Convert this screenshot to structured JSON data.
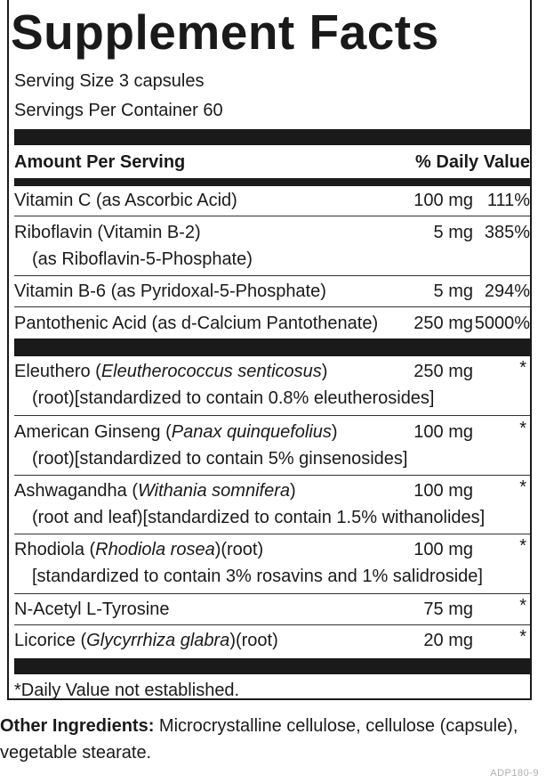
{
  "title": "Supplement Facts",
  "serving_size": "Serving Size 3 capsules",
  "servings_per_container": "Servings Per Container 60",
  "header": {
    "amount": "Amount Per Serving",
    "daily_value": "% Daily Value"
  },
  "vitamins": [
    {
      "name": "Vitamin C (as Ascorbic Acid)",
      "amount": "100 mg",
      "dv": "111%"
    },
    {
      "name": "Riboflavin (Vitamin B-2)",
      "name_cont": "(as Riboflavin-5-Phosphate)",
      "amount": "5 mg",
      "dv": "385%"
    },
    {
      "name": "Vitamin B-6 (as Pyridoxal-5-Phosphate)",
      "amount": "5 mg",
      "dv": "294%"
    },
    {
      "name": "Pantothenic Acid (as d-Calcium Pantothenate)",
      "amount": "250 mg",
      "dv": "5000%"
    }
  ],
  "herbs": [
    {
      "name_pre": "Eleuthero (",
      "latin": "Eleutherococcus senticosus",
      "name_post": ")",
      "name_cont": "(root)[standardized to contain 0.8% eleutherosides]",
      "amount": "250 mg",
      "dv": "*"
    },
    {
      "name_pre": "American Ginseng (",
      "latin": "Panax quinquefolius",
      "name_post": ")",
      "name_cont": "(root)[standardized to contain 5% ginsenosides]",
      "amount": "100 mg",
      "dv": "*"
    },
    {
      "name_pre": "Ashwagandha (",
      "latin": "Withania somnifera",
      "name_post": ")",
      "name_cont": "(root and leaf)[standardized to contain 1.5% withanolides]",
      "amount": "100 mg",
      "dv": "*"
    },
    {
      "name_pre": "Rhodiola (",
      "latin": "Rhodiola rosea",
      "name_post": ")(root)",
      "name_cont": "[standardized to contain 3% rosavins and 1% salidroside]",
      "amount": "100 mg",
      "dv": "*"
    },
    {
      "name": "N-Acetyl L-Tyrosine",
      "amount": "75 mg",
      "dv": "*"
    },
    {
      "name_pre": "Licorice (",
      "latin": "Glycyrrhiza glabra",
      "name_post": ")(root)",
      "amount": "20 mg",
      "dv": "*"
    }
  ],
  "footnote": "*Daily Value not established.",
  "other_ingredients": {
    "label": "Other Ingredients:",
    "text": " Microcrystalline cellulose, cellulose (capsule), vegetable stearate."
  },
  "product_code": "ADP180-9"
}
